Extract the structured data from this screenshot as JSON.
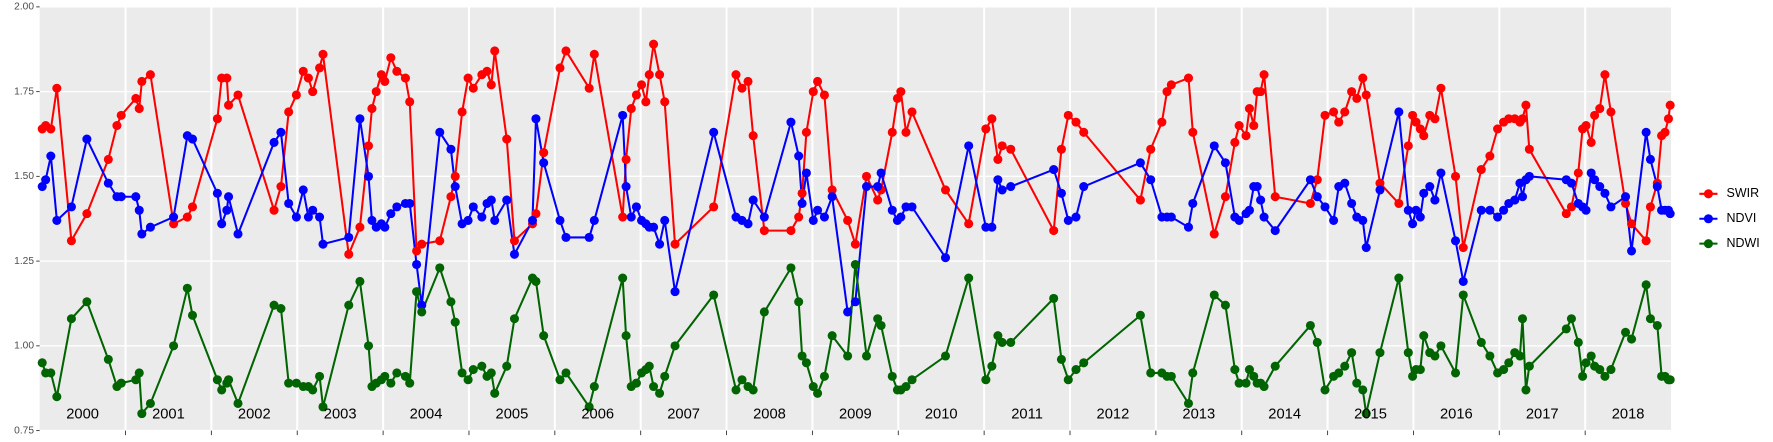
{
  "chart_data": {
    "type": "line",
    "x": [
      2000.03,
      2000.07,
      2000.13,
      2000.2,
      2000.37,
      2000.55,
      2000.8,
      2000.9,
      2000.95,
      2001.12,
      2001.16,
      2001.19,
      2001.29,
      2001.56,
      2001.72,
      2001.78,
      2002.07,
      2002.12,
      2002.18,
      2002.2,
      2002.31,
      2002.73,
      2002.81,
      2002.9,
      2002.99,
      2003.07,
      2003.13,
      2003.18,
      2003.26,
      2003.3,
      2003.6,
      2003.73,
      2003.83,
      2003.87,
      2003.92,
      2003.98,
      2004.02,
      2004.09,
      2004.16,
      2004.26,
      2004.31,
      2004.39,
      2004.45,
      2004.66,
      2004.79,
      2004.84,
      2004.92,
      2004.99,
      2005.05,
      2005.15,
      2005.21,
      2005.26,
      2005.3,
      2005.44,
      2005.53,
      2005.74,
      2005.78,
      2005.87,
      2006.06,
      2006.13,
      2006.4,
      2006.46,
      2006.79,
      2006.83,
      2006.89,
      2006.95,
      2007.01,
      2007.06,
      2007.1,
      2007.15,
      2007.22,
      2007.28,
      2007.4,
      2007.85,
      2008.11,
      2008.18,
      2008.25,
      2008.31,
      2008.44,
      2008.75,
      2008.84,
      2008.88,
      2008.93,
      2009.01,
      2009.06,
      2009.14,
      2009.23,
      2009.41,
      2009.5,
      2009.63,
      2009.76,
      2009.8,
      2009.93,
      2009.99,
      2010.03,
      2010.09,
      2010.16,
      2010.55,
      2010.82,
      2011.02,
      2011.09,
      2011.16,
      2011.21,
      2011.31,
      2011.81,
      2011.9,
      2011.98,
      2012.07,
      2012.16,
      2012.82,
      2012.94,
      2013.07,
      2013.13,
      2013.18,
      2013.38,
      2013.43,
      2013.68,
      2013.81,
      2013.92,
      2013.97,
      2014.05,
      2014.09,
      2014.14,
      2014.18,
      2014.22,
      2014.26,
      2014.39,
      2014.8,
      2014.88,
      2014.97,
      2015.07,
      2015.13,
      2015.2,
      2015.28,
      2015.34,
      2015.41,
      2015.45,
      2015.61,
      2015.83,
      2015.94,
      2015.99,
      2016.03,
      2016.08,
      2016.12,
      2016.19,
      2016.25,
      2016.32,
      2016.49,
      2016.58,
      2016.79,
      2016.89,
      2016.98,
      2017.05,
      2017.11,
      2017.18,
      2017.24,
      2017.27,
      2017.31,
      2017.35,
      2017.78,
      2017.84,
      2017.92,
      2017.97,
      2018.01,
      2018.07,
      2018.11,
      2018.17,
      2018.23,
      2018.3,
      2018.47,
      2018.54,
      2018.71,
      2018.76,
      2018.84,
      2018.89,
      2018.93,
      2018.97,
      2018.99
    ],
    "series": [
      {
        "name": "SWIR",
        "color": "#ff0000",
        "values": [
          1.64,
          1.65,
          1.64,
          1.76,
          1.31,
          1.39,
          1.55,
          1.65,
          1.68,
          1.73,
          1.7,
          1.78,
          1.8,
          1.36,
          1.38,
          1.41,
          1.67,
          1.79,
          1.79,
          1.71,
          1.74,
          1.4,
          1.47,
          1.69,
          1.74,
          1.81,
          1.79,
          1.75,
          1.82,
          1.86,
          1.27,
          1.35,
          1.59,
          1.7,
          1.75,
          1.8,
          1.78,
          1.85,
          1.81,
          1.79,
          1.72,
          1.28,
          1.3,
          1.31,
          1.44,
          1.5,
          1.69,
          1.79,
          1.76,
          1.8,
          1.81,
          1.77,
          1.87,
          1.61,
          1.31,
          1.36,
          1.39,
          1.57,
          1.82,
          1.87,
          1.76,
          1.86,
          1.38,
          1.55,
          1.7,
          1.74,
          1.77,
          1.72,
          1.8,
          1.89,
          1.8,
          1.72,
          1.3,
          1.41,
          1.8,
          1.76,
          1.78,
          1.62,
          1.34,
          1.34,
          1.38,
          1.45,
          1.63,
          1.75,
          1.78,
          1.74,
          1.46,
          1.37,
          1.3,
          1.5,
          1.43,
          1.46,
          1.63,
          1.73,
          1.75,
          1.63,
          1.69,
          1.46,
          1.36,
          1.64,
          1.67,
          1.55,
          1.59,
          1.58,
          1.34,
          1.58,
          1.68,
          1.66,
          1.63,
          1.43,
          1.58,
          1.66,
          1.75,
          1.77,
          1.79,
          1.63,
          1.33,
          1.44,
          1.6,
          1.65,
          1.62,
          1.7,
          1.65,
          1.75,
          1.75,
          1.8,
          1.44,
          1.42,
          1.49,
          1.68,
          1.69,
          1.66,
          1.69,
          1.75,
          1.73,
          1.79,
          1.74,
          1.48,
          1.42,
          1.59,
          1.68,
          1.66,
          1.64,
          1.62,
          1.68,
          1.67,
          1.76,
          1.5,
          1.29,
          1.52,
          1.56,
          1.64,
          1.66,
          1.67,
          1.67,
          1.66,
          1.67,
          1.71,
          1.58,
          1.39,
          1.41,
          1.51,
          1.64,
          1.65,
          1.6,
          1.68,
          1.7,
          1.8,
          1.69,
          1.42,
          1.36,
          1.31,
          1.41,
          1.48,
          1.62,
          1.63,
          1.67,
          1.71
        ]
      },
      {
        "name": "NDVI",
        "color": "#0000ff",
        "values": [
          1.47,
          1.49,
          1.56,
          1.37,
          1.41,
          1.61,
          1.48,
          1.44,
          1.44,
          1.44,
          1.4,
          1.33,
          1.35,
          1.38,
          1.62,
          1.61,
          1.45,
          1.36,
          1.4,
          1.44,
          1.33,
          1.6,
          1.63,
          1.42,
          1.38,
          1.46,
          1.38,
          1.4,
          1.38,
          1.3,
          1.32,
          1.67,
          1.5,
          1.37,
          1.35,
          1.36,
          1.35,
          1.39,
          1.41,
          1.42,
          1.42,
          1.24,
          1.12,
          1.63,
          1.58,
          1.47,
          1.36,
          1.37,
          1.41,
          1.38,
          1.42,
          1.43,
          1.37,
          1.43,
          1.27,
          1.37,
          1.67,
          1.54,
          1.37,
          1.32,
          1.32,
          1.37,
          1.68,
          1.47,
          1.38,
          1.41,
          1.37,
          1.36,
          1.35,
          1.35,
          1.3,
          1.37,
          1.16,
          1.63,
          1.38,
          1.37,
          1.36,
          1.43,
          1.38,
          1.66,
          1.56,
          1.42,
          1.51,
          1.37,
          1.4,
          1.38,
          1.44,
          1.1,
          1.13,
          1.47,
          1.47,
          1.51,
          1.4,
          1.37,
          1.38,
          1.41,
          1.41,
          1.26,
          1.59,
          1.35,
          1.35,
          1.49,
          1.46,
          1.47,
          1.52,
          1.45,
          1.37,
          1.38,
          1.47,
          1.54,
          1.49,
          1.38,
          1.38,
          1.38,
          1.35,
          1.42,
          1.59,
          1.54,
          1.38,
          1.37,
          1.39,
          1.4,
          1.47,
          1.47,
          1.43,
          1.38,
          1.34,
          1.49,
          1.44,
          1.41,
          1.37,
          1.47,
          1.48,
          1.42,
          1.38,
          1.37,
          1.29,
          1.46,
          1.69,
          1.4,
          1.36,
          1.4,
          1.38,
          1.45,
          1.47,
          1.43,
          1.51,
          1.31,
          1.19,
          1.4,
          1.4,
          1.38,
          1.4,
          1.42,
          1.43,
          1.48,
          1.44,
          1.49,
          1.5,
          1.49,
          1.48,
          1.42,
          1.41,
          1.4,
          1.51,
          1.49,
          1.47,
          1.45,
          1.41,
          1.44,
          1.28,
          1.63,
          1.55,
          1.47,
          1.4,
          1.4,
          1.4,
          1.39
        ]
      },
      {
        "name": "NDWI",
        "color": "#006400",
        "values": [
          0.95,
          0.92,
          0.92,
          0.85,
          1.08,
          1.13,
          0.96,
          0.88,
          0.89,
          0.9,
          0.92,
          0.8,
          0.83,
          1.0,
          1.17,
          1.09,
          0.9,
          0.87,
          0.89,
          0.9,
          0.83,
          1.12,
          1.11,
          0.89,
          0.89,
          0.88,
          0.88,
          0.87,
          0.91,
          0.82,
          1.12,
          1.19,
          1.0,
          0.88,
          0.89,
          0.9,
          0.91,
          0.89,
          0.92,
          0.91,
          0.89,
          1.16,
          1.1,
          1.23,
          1.13,
          1.07,
          0.92,
          0.9,
          0.93,
          0.94,
          0.91,
          0.92,
          0.86,
          0.94,
          1.08,
          1.2,
          1.19,
          1.03,
          0.9,
          0.92,
          0.82,
          0.88,
          1.2,
          1.03,
          0.88,
          0.89,
          0.92,
          0.93,
          0.94,
          0.88,
          0.86,
          0.91,
          1.0,
          1.15,
          0.87,
          0.9,
          0.88,
          0.87,
          1.1,
          1.23,
          1.13,
          0.97,
          0.95,
          0.88,
          0.86,
          0.91,
          1.03,
          0.97,
          1.24,
          0.97,
          1.08,
          1.06,
          0.91,
          0.87,
          0.87,
          0.88,
          0.9,
          0.97,
          1.2,
          0.9,
          0.94,
          1.03,
          1.01,
          1.01,
          1.14,
          0.96,
          0.9,
          0.93,
          0.95,
          1.09,
          0.92,
          0.92,
          0.91,
          0.91,
          0.83,
          0.92,
          1.15,
          1.12,
          0.93,
          0.89,
          0.89,
          0.93,
          0.91,
          0.89,
          0.89,
          0.88,
          0.94,
          1.06,
          1.01,
          0.87,
          0.91,
          0.92,
          0.94,
          0.98,
          0.89,
          0.87,
          0.8,
          0.98,
          1.2,
          0.98,
          0.91,
          0.93,
          0.93,
          1.03,
          0.98,
          0.97,
          1.0,
          0.92,
          1.15,
          1.01,
          0.97,
          0.92,
          0.93,
          0.95,
          0.98,
          0.97,
          1.08,
          0.87,
          0.94,
          1.05,
          1.08,
          1.01,
          0.91,
          0.95,
          0.97,
          0.94,
          0.93,
          0.91,
          0.93,
          1.04,
          1.02,
          1.18,
          1.08,
          1.06,
          0.91,
          0.91,
          0.9,
          0.9
        ]
      }
    ],
    "xlim": [
      2000,
      2019
    ],
    "xticks": [
      {
        "value": 2000.5,
        "label": "2000"
      },
      {
        "value": 2001.5,
        "label": "2001"
      },
      {
        "value": 2002.5,
        "label": "2002"
      },
      {
        "value": 2003.5,
        "label": "2003"
      },
      {
        "value": 2004.5,
        "label": "2004"
      },
      {
        "value": 2005.5,
        "label": "2005"
      },
      {
        "value": 2006.5,
        "label": "2006"
      },
      {
        "value": 2007.5,
        "label": "2007"
      },
      {
        "value": 2008.5,
        "label": "2008"
      },
      {
        "value": 2009.5,
        "label": "2009"
      },
      {
        "value": 2010.5,
        "label": "2010"
      },
      {
        "value": 2011.5,
        "label": "2011"
      },
      {
        "value": 2012.5,
        "label": "2012"
      },
      {
        "value": 2013.5,
        "label": "2013"
      },
      {
        "value": 2014.5,
        "label": "2014"
      },
      {
        "value": 2015.5,
        "label": "2015"
      },
      {
        "value": 2016.5,
        "label": "2016"
      },
      {
        "value": 2017.5,
        "label": "2017"
      },
      {
        "value": 2018.5,
        "label": "2018"
      }
    ],
    "xgrid": [
      2001,
      2002,
      2003,
      2004,
      2005,
      2006,
      2007,
      2008,
      2009,
      2010,
      2011,
      2012,
      2013,
      2014,
      2015,
      2016,
      2017,
      2018
    ],
    "ylim": [
      0.75,
      2.0
    ],
    "yticks": [
      {
        "value": 0.75,
        "label": "0.75"
      },
      {
        "value": 1.0,
        "label": "1.00"
      },
      {
        "value": 1.25,
        "label": "1.25"
      },
      {
        "value": 1.5,
        "label": "1.50"
      },
      {
        "value": 1.75,
        "label": "1.75"
      },
      {
        "value": 2.0,
        "label": "2.00"
      }
    ],
    "grid": true,
    "legend": "right"
  }
}
